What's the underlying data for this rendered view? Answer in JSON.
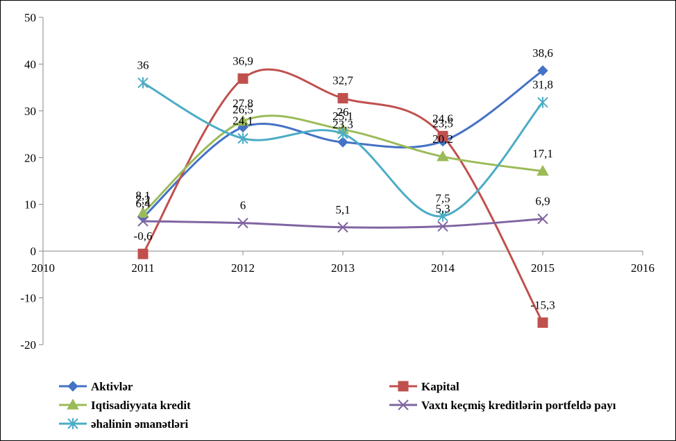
{
  "chart_data": {
    "type": "line",
    "smooth": true,
    "x": [
      2011,
      2012,
      2013,
      2014,
      2015
    ],
    "xlim": [
      2010,
      2016
    ],
    "x_ticks": [
      2010,
      2011,
      2012,
      2013,
      2014,
      2015,
      2016
    ],
    "x_tick_labels": [
      "2010",
      "2011",
      "2012",
      "2013",
      "2014",
      "2015",
      "2016"
    ],
    "ylim": [
      -20,
      50
    ],
    "y_ticks": [
      -20,
      -10,
      0,
      10,
      20,
      30,
      40,
      50
    ],
    "y_tick_labels": [
      "-20",
      "-10",
      "0",
      "10",
      "20",
      "30",
      "40",
      "50"
    ],
    "grid": false,
    "legend_placement": "bottom",
    "series": [
      {
        "name": "Aktivlər",
        "values": [
          7.2,
          26.5,
          23.3,
          23.5,
          38.6
        ],
        "labels": [
          "7,2",
          "26,5",
          "23,3",
          "23,5",
          "38,6"
        ],
        "color": "#4472C4",
        "marker": "diamond"
      },
      {
        "name": "Kapital",
        "values": [
          -0.6,
          36.9,
          32.7,
          24.6,
          -15.3
        ],
        "labels": [
          "-0,6",
          "36,9",
          "32,7",
          "24,6",
          "-15,3"
        ],
        "color": "#C0504D",
        "marker": "square"
      },
      {
        "name": "Iqtisadiyyata kredit",
        "values": [
          8.1,
          27.8,
          26,
          20.2,
          17.1
        ],
        "labels": [
          "8,1",
          "27,8",
          "26",
          "20,2",
          "17,1"
        ],
        "color": "#9BBB59",
        "marker": "triangle"
      },
      {
        "name": "Vaxtı keçmiş kreditlərin portfeldə payı",
        "values": [
          6.4,
          6,
          5.1,
          5.3,
          6.9
        ],
        "labels": [
          "6,4",
          "6",
          "5,1",
          "5,3",
          "6,9"
        ],
        "color": "#8064A2",
        "marker": "x"
      },
      {
        "name": "əhalinin əmanətləri",
        "values": [
          36,
          24.1,
          25.1,
          7.5,
          31.8
        ],
        "labels": [
          "36",
          "24,1",
          "25,1",
          "7,5",
          "31,8"
        ],
        "color": "#4BACC6",
        "marker": "star"
      }
    ]
  }
}
